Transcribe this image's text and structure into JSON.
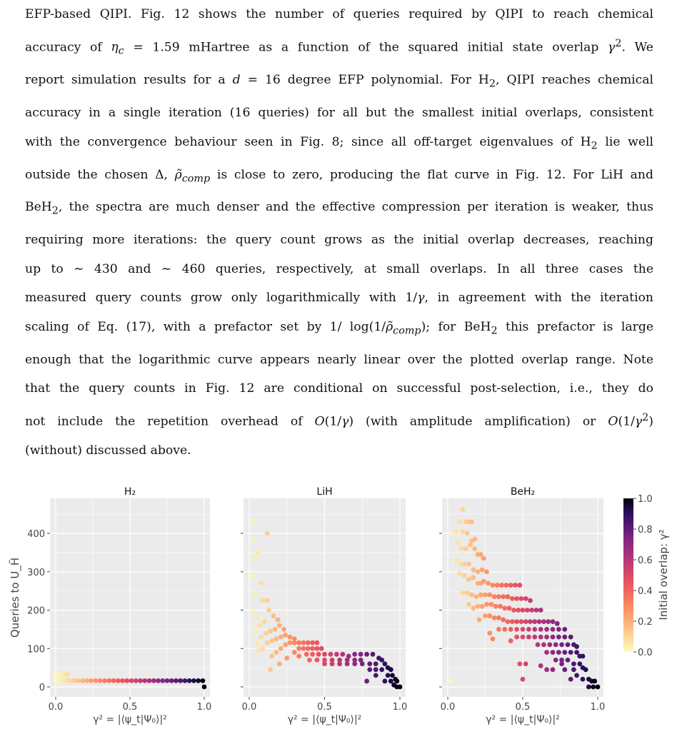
{
  "paragraph": [
    "EFP-based QIPI. Fig. 12 shows the number of queries required by QIPI to reach chemical",
    "accuracy of η_c = 1.59 mHartree as a function of the squared initial state overlap γ². We",
    "report simulation results for a d = 16 degree EFP polynomial. For H₂, QIPI reaches chemical",
    "accuracy in a single iteration (16 queries) for all but the smallest initial overlaps, consistent",
    "with the convergence behaviour seen in Fig. 8; since all off-target eigenvalues of H₂ lie well",
    "outside the chosen Δ, ρ̃_comp is close to zero, producing the flat curve in Fig. 12. For LiH and",
    "BeH₂, the spectra are much denser and the effective compression per iteration is weaker, thus",
    "requiring more iterations: the query count grows as the initial overlap decreases, reaching",
    "up to ∼ 430 and ∼ 460 queries, respectively, at small overlaps. In all three cases the",
    "measured query counts grow only logarithmically with 1/γ, in agreement with the iteration",
    "scaling of Eq. (17), with a prefactor set by 1/log(1/ρ̃_comp); for BeH₂ this prefactor is large",
    "enough that the logarithmic curve appears nearly linear over the plotted overlap range. Note",
    "that the query counts in Fig. 12 are conditional on successful post-selection, i.e., they do",
    "not include the repetition overhead of O(1/γ) (with amplitude amplification) or O(1/γ²)",
    "(without) discussed above."
  ],
  "colors": {
    "panel_bg": "#ebebeb",
    "grid": "#ffffff",
    "axis_text": "#444444"
  },
  "colorbar": {
    "label": "Initial overlap: γ²",
    "ticks": [
      "1.0",
      "0.8",
      "0.6",
      "0.4",
      "0.2",
      "0.0"
    ],
    "colormap": "magma_r"
  },
  "chart_data": [
    {
      "type": "scatter",
      "title": "H₂",
      "ylabel": "Queries to U_H̃",
      "xlabel": "γ² = |⟨ψ_t|Ψ₀⟩|²",
      "xlim": [
        0,
        1
      ],
      "ylim": [
        0,
        480
      ],
      "xticks": [
        "0.0",
        "0.5",
        "1.0"
      ],
      "yticks": [
        "0",
        "100",
        "200",
        "300",
        "400"
      ],
      "points": [
        [
          0.0,
          32
        ],
        [
          0.02,
          32
        ],
        [
          0.04,
          32
        ],
        [
          0.06,
          32
        ],
        [
          0.08,
          32
        ],
        [
          0.0,
          16
        ],
        [
          0.01,
          16
        ],
        [
          0.03,
          16
        ],
        [
          0.05,
          16
        ],
        [
          0.07,
          16
        ],
        [
          0.09,
          16
        ],
        [
          0.12,
          16
        ],
        [
          0.15,
          16
        ],
        [
          0.18,
          16
        ],
        [
          0.21,
          16
        ],
        [
          0.24,
          16
        ],
        [
          0.27,
          16
        ],
        [
          0.3,
          16
        ],
        [
          0.33,
          16
        ],
        [
          0.36,
          16
        ],
        [
          0.39,
          16
        ],
        [
          0.42,
          16
        ],
        [
          0.45,
          16
        ],
        [
          0.48,
          16
        ],
        [
          0.51,
          16
        ],
        [
          0.54,
          16
        ],
        [
          0.57,
          16
        ],
        [
          0.6,
          16
        ],
        [
          0.63,
          16
        ],
        [
          0.66,
          16
        ],
        [
          0.69,
          16
        ],
        [
          0.72,
          16
        ],
        [
          0.75,
          16
        ],
        [
          0.78,
          16
        ],
        [
          0.81,
          16
        ],
        [
          0.84,
          16
        ],
        [
          0.87,
          16
        ],
        [
          0.9,
          16
        ],
        [
          0.93,
          16
        ],
        [
          0.96,
          16
        ],
        [
          0.99,
          16
        ],
        [
          1.0,
          0
        ]
      ]
    },
    {
      "type": "scatter",
      "title": "LiH",
      "ylabel": "",
      "xlabel": "γ² = |⟨ψ_t|Ψ₀⟩|²",
      "xlim": [
        0,
        1
      ],
      "ylim": [
        0,
        480
      ],
      "xticks": [
        "0.0",
        "0.5",
        "1.0"
      ],
      "yticks": [],
      "points": [
        [
          0.03,
          430
        ],
        [
          0.03,
          385
        ],
        [
          0.04,
          335
        ],
        [
          0.06,
          350
        ],
        [
          0.12,
          400
        ],
        [
          0.02,
          290
        ],
        [
          0.04,
          240
        ],
        [
          0.08,
          270
        ],
        [
          0.03,
          195
        ],
        [
          0.05,
          180
        ],
        [
          0.09,
          225
        ],
        [
          0.12,
          225
        ],
        [
          0.04,
          150
        ],
        [
          0.07,
          160
        ],
        [
          0.1,
          170
        ],
        [
          0.13,
          200
        ],
        [
          0.16,
          185
        ],
        [
          0.19,
          175
        ],
        [
          0.05,
          115
        ],
        [
          0.08,
          130
        ],
        [
          0.11,
          140
        ],
        [
          0.14,
          145
        ],
        [
          0.17,
          150
        ],
        [
          0.2,
          160
        ],
        [
          0.23,
          150
        ],
        [
          0.06,
          95
        ],
        [
          0.09,
          100
        ],
        [
          0.12,
          115
        ],
        [
          0.15,
          120
        ],
        [
          0.18,
          125
        ],
        [
          0.21,
          130
        ],
        [
          0.24,
          135
        ],
        [
          0.27,
          130
        ],
        [
          0.3,
          125
        ],
        [
          0.15,
          80
        ],
        [
          0.18,
          90
        ],
        [
          0.21,
          100
        ],
        [
          0.24,
          110
        ],
        [
          0.27,
          115
        ],
        [
          0.3,
          115
        ],
        [
          0.33,
          115
        ],
        [
          0.36,
          115
        ],
        [
          0.39,
          115
        ],
        [
          0.42,
          115
        ],
        [
          0.45,
          115
        ],
        [
          0.14,
          45
        ],
        [
          0.2,
          60
        ],
        [
          0.25,
          75
        ],
        [
          0.3,
          90
        ],
        [
          0.33,
          100
        ],
        [
          0.36,
          100
        ],
        [
          0.39,
          100
        ],
        [
          0.42,
          100
        ],
        [
          0.45,
          100
        ],
        [
          0.48,
          100
        ],
        [
          0.33,
          80
        ],
        [
          0.38,
          85
        ],
        [
          0.42,
          85
        ],
        [
          0.46,
          85
        ],
        [
          0.5,
          85
        ],
        [
          0.54,
          85
        ],
        [
          0.58,
          85
        ],
        [
          0.62,
          85
        ],
        [
          0.4,
          70
        ],
        [
          0.45,
          70
        ],
        [
          0.5,
          70
        ],
        [
          0.55,
          70
        ],
        [
          0.6,
          70
        ],
        [
          0.65,
          70
        ],
        [
          0.7,
          70
        ],
        [
          0.74,
          70
        ],
        [
          0.5,
          60
        ],
        [
          0.55,
          60
        ],
        [
          0.6,
          60
        ],
        [
          0.65,
          60
        ],
        [
          0.7,
          60
        ],
        [
          0.75,
          60
        ],
        [
          0.8,
          60
        ],
        [
          0.84,
          60
        ],
        [
          0.66,
          80
        ],
        [
          0.7,
          85
        ],
        [
          0.74,
          85
        ],
        [
          0.78,
          85
        ],
        [
          0.82,
          85
        ],
        [
          0.86,
          75
        ],
        [
          0.88,
          70
        ],
        [
          0.9,
          60
        ],
        [
          0.92,
          50
        ],
        [
          0.94,
          45
        ],
        [
          0.8,
          45
        ],
        [
          0.84,
          45
        ],
        [
          0.88,
          45
        ],
        [
          0.92,
          30
        ],
        [
          0.95,
          30
        ],
        [
          0.97,
          20
        ],
        [
          0.98,
          15
        ],
        [
          0.9,
          15
        ],
        [
          0.94,
          15
        ],
        [
          0.96,
          5
        ],
        [
          0.98,
          0
        ],
        [
          1.0,
          0
        ],
        [
          0.78,
          15
        ],
        [
          0.84,
          30
        ]
      ]
    },
    {
      "type": "scatter",
      "title": "BeH₂",
      "ylabel": "",
      "xlabel": "γ² = |⟨ψ_t|Ψ₀⟩|²",
      "xlim": [
        0,
        1
      ],
      "ylim": [
        0,
        480
      ],
      "xticks": [
        "0.0",
        "0.5",
        "1.0"
      ],
      "yticks": [],
      "points": [
        [
          0.1,
          462
        ],
        [
          0.08,
          430
        ],
        [
          0.12,
          430
        ],
        [
          0.14,
          430
        ],
        [
          0.16,
          430
        ],
        [
          0.04,
          400
        ],
        [
          0.06,
          405
        ],
        [
          0.1,
          405
        ],
        [
          0.13,
          400
        ],
        [
          0.16,
          380
        ],
        [
          0.18,
          385
        ],
        [
          0.07,
          375
        ],
        [
          0.09,
          360
        ],
        [
          0.12,
          360
        ],
        [
          0.15,
          370
        ],
        [
          0.18,
          360
        ],
        [
          0.2,
          345
        ],
        [
          0.22,
          345
        ],
        [
          0.24,
          335
        ],
        [
          0.06,
          330
        ],
        [
          0.09,
          320
        ],
        [
          0.11,
          320
        ],
        [
          0.14,
          320
        ],
        [
          0.17,
          305
        ],
        [
          0.2,
          300
        ],
        [
          0.23,
          305
        ],
        [
          0.26,
          300
        ],
        [
          0.08,
          295
        ],
        [
          0.11,
          290
        ],
        [
          0.14,
          280
        ],
        [
          0.17,
          285
        ],
        [
          0.2,
          270
        ],
        [
          0.22,
          270
        ],
        [
          0.24,
          275
        ],
        [
          0.27,
          270
        ],
        [
          0.3,
          265
        ],
        [
          0.33,
          265
        ],
        [
          0.36,
          265
        ],
        [
          0.39,
          265
        ],
        [
          0.42,
          265
        ],
        [
          0.45,
          265
        ],
        [
          0.48,
          265
        ],
        [
          0.1,
          245
        ],
        [
          0.13,
          245
        ],
        [
          0.16,
          240
        ],
        [
          0.19,
          235
        ],
        [
          0.22,
          240
        ],
        [
          0.25,
          240
        ],
        [
          0.28,
          240
        ],
        [
          0.31,
          235
        ],
        [
          0.34,
          235
        ],
        [
          0.37,
          235
        ],
        [
          0.4,
          235
        ],
        [
          0.43,
          230
        ],
        [
          0.46,
          230
        ],
        [
          0.49,
          230
        ],
        [
          0.52,
          230
        ],
        [
          0.55,
          225
        ],
        [
          0.14,
          215
        ],
        [
          0.17,
          205
        ],
        [
          0.2,
          210
        ],
        [
          0.23,
          210
        ],
        [
          0.26,
          215
        ],
        [
          0.29,
          215
        ],
        [
          0.32,
          210
        ],
        [
          0.35,
          210
        ],
        [
          0.38,
          205
        ],
        [
          0.41,
          205
        ],
        [
          0.44,
          200
        ],
        [
          0.47,
          200
        ],
        [
          0.5,
          200
        ],
        [
          0.53,
          200
        ],
        [
          0.56,
          200
        ],
        [
          0.59,
          200
        ],
        [
          0.62,
          200
        ],
        [
          0.21,
          175
        ],
        [
          0.25,
          185
        ],
        [
          0.28,
          185
        ],
        [
          0.31,
          180
        ],
        [
          0.34,
          180
        ],
        [
          0.37,
          175
        ],
        [
          0.4,
          170
        ],
        [
          0.43,
          170
        ],
        [
          0.46,
          170
        ],
        [
          0.49,
          170
        ],
        [
          0.52,
          170
        ],
        [
          0.55,
          170
        ],
        [
          0.58,
          170
        ],
        [
          0.61,
          170
        ],
        [
          0.64,
          170
        ],
        [
          0.67,
          170
        ],
        [
          0.7,
          170
        ],
        [
          0.73,
          165
        ],
        [
          0.28,
          140
        ],
        [
          0.3,
          125
        ],
        [
          0.34,
          150
        ],
        [
          0.38,
          150
        ],
        [
          0.42,
          150
        ],
        [
          0.46,
          150
        ],
        [
          0.5,
          150
        ],
        [
          0.54,
          150
        ],
        [
          0.58,
          150
        ],
        [
          0.62,
          150
        ],
        [
          0.66,
          150
        ],
        [
          0.7,
          150
        ],
        [
          0.74,
          150
        ],
        [
          0.78,
          150
        ],
        [
          0.42,
          120
        ],
        [
          0.46,
          130
        ],
        [
          0.5,
          130
        ],
        [
          0.54,
          130
        ],
        [
          0.58,
          130
        ],
        [
          0.62,
          130
        ],
        [
          0.66,
          130
        ],
        [
          0.7,
          130
        ],
        [
          0.74,
          130
        ],
        [
          0.78,
          130
        ],
        [
          0.82,
          130
        ],
        [
          0.6,
          110
        ],
        [
          0.64,
          110
        ],
        [
          0.68,
          110
        ],
        [
          0.72,
          110
        ],
        [
          0.76,
          110
        ],
        [
          0.8,
          110
        ],
        [
          0.84,
          110
        ],
        [
          0.86,
          105
        ],
        [
          0.66,
          90
        ],
        [
          0.7,
          90
        ],
        [
          0.74,
          90
        ],
        [
          0.78,
          90
        ],
        [
          0.82,
          90
        ],
        [
          0.86,
          90
        ],
        [
          0.88,
          80
        ],
        [
          0.9,
          80
        ],
        [
          0.72,
          70
        ],
        [
          0.76,
          70
        ],
        [
          0.8,
          70
        ],
        [
          0.84,
          60
        ],
        [
          0.88,
          60
        ],
        [
          0.9,
          50
        ],
        [
          0.92,
          45
        ],
        [
          0.78,
          45
        ],
        [
          0.84,
          45
        ],
        [
          0.86,
          30
        ],
        [
          0.9,
          20
        ],
        [
          0.94,
          20
        ],
        [
          0.96,
          15
        ],
        [
          0.98,
          15
        ],
        [
          0.94,
          0
        ],
        [
          0.97,
          0
        ],
        [
          1.0,
          0
        ],
        [
          0.02,
          15
        ],
        [
          0.48,
          60
        ],
        [
          0.52,
          60
        ],
        [
          0.5,
          20
        ],
        [
          0.82,
          20
        ],
        [
          0.62,
          55
        ],
        [
          0.66,
          45
        ],
        [
          0.7,
          45
        ],
        [
          0.76,
          60
        ]
      ]
    }
  ]
}
